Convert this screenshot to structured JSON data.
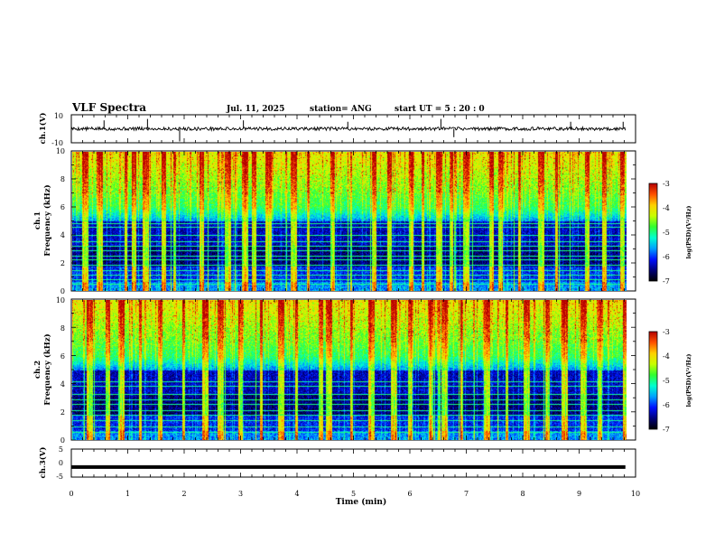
{
  "header": {
    "title": "VLF Spectra",
    "date": "Jul. 11, 2025",
    "station": "station= ANG",
    "start_ut": "start UT =  5 : 20 : 0"
  },
  "chart_data": [
    {
      "id": "ch1-waveform",
      "type": "line",
      "ylabel": "ch.1(V)",
      "ylim": [
        -10,
        10
      ],
      "y_tick_labels": [
        "10",
        "-10"
      ],
      "baseline": 0,
      "noise_amplitude": 1.2,
      "spikes": [
        {
          "t": 0.58,
          "v": 6
        },
        {
          "t": 1.35,
          "v": 7
        },
        {
          "t": 1.92,
          "v": -9
        },
        {
          "t": 3.05,
          "v": 6
        },
        {
          "t": 4.9,
          "v": 5
        },
        {
          "t": 6.55,
          "v": 7
        },
        {
          "t": 6.78,
          "v": -6
        },
        {
          "t": 8.85,
          "v": 5
        },
        {
          "t": 9.78,
          "v": 5
        }
      ],
      "xlim": [
        0,
        10
      ]
    },
    {
      "id": "ch1-spectrogram",
      "type": "heatmap",
      "ylabel": "ch.1\nFrequency (kHz)",
      "ylim": [
        0,
        10
      ],
      "y_ticks": [
        0,
        2,
        4,
        6,
        8,
        10
      ],
      "xlim": [
        0,
        10
      ],
      "data_end_min": 9.82,
      "colorbar": {
        "label": "log(PSD)(V²/Hz)",
        "range": [
          -7,
          -3
        ],
        "ticks": [
          -3,
          -4,
          -5,
          -6,
          -7
        ]
      },
      "hum_lines_khz": [
        0.55,
        0.85,
        1.15,
        1.5,
        1.9,
        2.25,
        2.55,
        2.9,
        3.25,
        3.55,
        4.0,
        4.6,
        4.85
      ],
      "sferics_min": [
        0.22,
        0.48,
        0.95,
        1.08,
        1.3,
        1.62,
        1.8,
        2.28,
        2.75,
        3.05,
        3.22,
        3.48,
        3.92,
        4.18,
        4.6,
        5.35,
        5.62,
        6.0,
        6.2,
        6.5,
        6.72,
        6.98,
        7.42,
        7.58,
        7.92,
        8.3,
        8.58,
        9.12,
        9.42,
        9.75
      ],
      "seed": 11
    },
    {
      "id": "ch2-spectrogram",
      "type": "heatmap",
      "ylabel": "ch.2\nFrequency (kHz)",
      "ylim": [
        0,
        10
      ],
      "y_ticks": [
        0,
        2,
        4,
        6,
        8,
        10
      ],
      "xlim": [
        0,
        10
      ],
      "data_end_min": 9.82,
      "colorbar": {
        "label": "log(PSD)(V²/Hz)",
        "range": [
          -7,
          -3
        ],
        "ticks": [
          -3,
          -4,
          -5,
          -6,
          -7
        ]
      },
      "hum_lines_khz": [
        0.6,
        1.0,
        1.4,
        1.8,
        2.1,
        2.6,
        2.9,
        3.3,
        3.9,
        4.2
      ],
      "sferics_min": [
        0.3,
        0.62,
        0.88,
        1.2,
        1.55,
        1.97,
        2.35,
        2.62,
        2.98,
        3.35,
        3.7,
        3.96,
        4.4,
        4.55,
        4.95,
        5.3,
        5.7,
        5.98,
        6.35,
        6.6,
        6.9,
        7.35,
        7.7,
        8.05,
        8.42,
        8.72,
        9.05,
        9.35,
        9.8
      ],
      "seed": 23
    },
    {
      "id": "ch3-waveform",
      "type": "line",
      "ylabel": "ch.3(V)",
      "ylim": [
        -5,
        5
      ],
      "y_tick_labels": [
        "5",
        "0",
        "-5"
      ],
      "baseline": -1.4,
      "noise_amplitude": 0,
      "xlim": [
        0,
        10
      ]
    }
  ],
  "x_axis": {
    "label": "Time (min)",
    "ticks": [
      "0",
      "1",
      "2",
      "3",
      "4",
      "5",
      "6",
      "7",
      "8",
      "9",
      "10"
    ]
  },
  "colors": {
    "colormap": [
      "#000000",
      "#00007a",
      "#0010ff",
      "#00a0ff",
      "#00ffd0",
      "#30ff30",
      "#c8ff00",
      "#ffd000",
      "#ff5000",
      "#b40000"
    ]
  }
}
